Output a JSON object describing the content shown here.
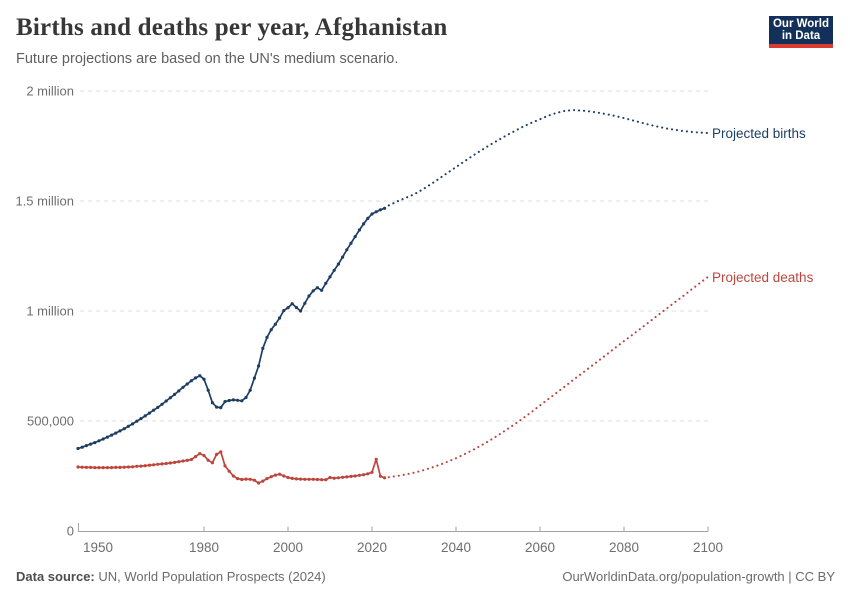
{
  "header": {
    "title": "Births and deaths per year, Afghanistan",
    "subtitle": "Future projections are based on the UN's medium scenario.",
    "logo_line1": "Our World",
    "logo_line2": "in Data",
    "logo_colors": {
      "background": "#12305a",
      "stripe": "#d93d32"
    }
  },
  "chart_data": {
    "type": "line",
    "title": "Births and deaths per year, Afghanistan",
    "x_label": "",
    "y_label": "",
    "x_range": [
      1950,
      2100
    ],
    "y_range": [
      0,
      2000000
    ],
    "grid": true,
    "x_ticks": [
      1950,
      1980,
      2000,
      2020,
      2040,
      2060,
      2080,
      2100
    ],
    "y_ticks": [
      {
        "value": 0,
        "label": "0"
      },
      {
        "value": 500000,
        "label": "500,000"
      },
      {
        "value": 1000000,
        "label": "1 million"
      },
      {
        "value": 1500000,
        "label": "1.5 million"
      },
      {
        "value": 2000000,
        "label": "2 million"
      }
    ],
    "series_labels": {
      "births": {
        "text": "Projected births"
      },
      "deaths": {
        "text": "Projected deaths"
      }
    },
    "series": [
      {
        "id": "births-historical",
        "name": "Births (historical)",
        "color": "#1d3d63",
        "style": "solid",
        "points": [
          [
            1950,
            375000
          ],
          [
            1951,
            381000
          ],
          [
            1952,
            388000
          ],
          [
            1953,
            395000
          ],
          [
            1954,
            402000
          ],
          [
            1955,
            410000
          ],
          [
            1956,
            418000
          ],
          [
            1957,
            427000
          ],
          [
            1958,
            436000
          ],
          [
            1959,
            445000
          ],
          [
            1960,
            455000
          ],
          [
            1961,
            465000
          ],
          [
            1962,
            476000
          ],
          [
            1963,
            487000
          ],
          [
            1964,
            499000
          ],
          [
            1965,
            511000
          ],
          [
            1966,
            523000
          ],
          [
            1967,
            536000
          ],
          [
            1968,
            549000
          ],
          [
            1969,
            562000
          ],
          [
            1970,
            576000
          ],
          [
            1971,
            591000
          ],
          [
            1972,
            606000
          ],
          [
            1973,
            621000
          ],
          [
            1974,
            637000
          ],
          [
            1975,
            653000
          ],
          [
            1976,
            668000
          ],
          [
            1977,
            683000
          ],
          [
            1978,
            696000
          ],
          [
            1979,
            706000
          ],
          [
            1980,
            690000
          ],
          [
            1981,
            640000
          ],
          [
            1982,
            583000
          ],
          [
            1983,
            563000
          ],
          [
            1984,
            561000
          ],
          [
            1985,
            588000
          ],
          [
            1986,
            593000
          ],
          [
            1987,
            596000
          ],
          [
            1988,
            594000
          ],
          [
            1989,
            592000
          ],
          [
            1990,
            607000
          ],
          [
            1991,
            640000
          ],
          [
            1992,
            695000
          ],
          [
            1993,
            750000
          ],
          [
            1994,
            830000
          ],
          [
            1995,
            880000
          ],
          [
            1996,
            915000
          ],
          [
            1997,
            940000
          ],
          [
            1998,
            968000
          ],
          [
            1999,
            1002000
          ],
          [
            2000,
            1015000
          ],
          [
            2001,
            1033000
          ],
          [
            2002,
            1016000
          ],
          [
            2003,
            1000000
          ],
          [
            2004,
            1035000
          ],
          [
            2005,
            1068000
          ],
          [
            2006,
            1092000
          ],
          [
            2007,
            1106000
          ],
          [
            2008,
            1094000
          ],
          [
            2009,
            1126000
          ],
          [
            2010,
            1155000
          ],
          [
            2011,
            1185000
          ],
          [
            2012,
            1213000
          ],
          [
            2013,
            1245000
          ],
          [
            2014,
            1278000
          ],
          [
            2015,
            1308000
          ],
          [
            2016,
            1338000
          ],
          [
            2017,
            1368000
          ],
          [
            2018,
            1396000
          ],
          [
            2019,
            1421000
          ],
          [
            2020,
            1441000
          ],
          [
            2021,
            1451000
          ],
          [
            2022,
            1460000
          ],
          [
            2023,
            1467000
          ]
        ]
      },
      {
        "id": "births-projected",
        "name": "Projected births",
        "color": "#1d3d63",
        "style": "dotted",
        "points": [
          [
            2024,
            1480000
          ],
          [
            2026,
            1498000
          ],
          [
            2028,
            1514000
          ],
          [
            2030,
            1530000
          ],
          [
            2032,
            1552000
          ],
          [
            2034,
            1576000
          ],
          [
            2036,
            1602000
          ],
          [
            2038,
            1628000
          ],
          [
            2040,
            1654000
          ],
          [
            2042,
            1680000
          ],
          [
            2044,
            1706000
          ],
          [
            2046,
            1730000
          ],
          [
            2048,
            1754000
          ],
          [
            2050,
            1776000
          ],
          [
            2052,
            1798000
          ],
          [
            2054,
            1818000
          ],
          [
            2056,
            1838000
          ],
          [
            2058,
            1856000
          ],
          [
            2060,
            1872000
          ],
          [
            2062,
            1888000
          ],
          [
            2064,
            1901000
          ],
          [
            2066,
            1910000
          ],
          [
            2068,
            1913000
          ],
          [
            2070,
            1911000
          ],
          [
            2072,
            1907000
          ],
          [
            2074,
            1901000
          ],
          [
            2076,
            1894000
          ],
          [
            2078,
            1886000
          ],
          [
            2080,
            1877000
          ],
          [
            2082,
            1867000
          ],
          [
            2084,
            1857000
          ],
          [
            2086,
            1847000
          ],
          [
            2088,
            1838000
          ],
          [
            2090,
            1830000
          ],
          [
            2092,
            1824000
          ],
          [
            2094,
            1818000
          ],
          [
            2096,
            1814000
          ],
          [
            2098,
            1811000
          ],
          [
            2100,
            1809000
          ]
        ]
      },
      {
        "id": "deaths-historical",
        "name": "Deaths (historical)",
        "color": "#bc463c",
        "style": "solid",
        "points": [
          [
            1950,
            291000
          ],
          [
            1951,
            290000
          ],
          [
            1952,
            289000
          ],
          [
            1953,
            289000
          ],
          [
            1954,
            288000
          ],
          [
            1955,
            288000
          ],
          [
            1956,
            288000
          ],
          [
            1957,
            288000
          ],
          [
            1958,
            288000
          ],
          [
            1959,
            289000
          ],
          [
            1960,
            289000
          ],
          [
            1961,
            290000
          ],
          [
            1962,
            291000
          ],
          [
            1963,
            292000
          ],
          [
            1964,
            294000
          ],
          [
            1965,
            295000
          ],
          [
            1966,
            297000
          ],
          [
            1967,
            299000
          ],
          [
            1968,
            301000
          ],
          [
            1969,
            303000
          ],
          [
            1970,
            305000
          ],
          [
            1971,
            307000
          ],
          [
            1972,
            309000
          ],
          [
            1973,
            312000
          ],
          [
            1974,
            315000
          ],
          [
            1975,
            318000
          ],
          [
            1976,
            321000
          ],
          [
            1977,
            325000
          ],
          [
            1978,
            338000
          ],
          [
            1979,
            352000
          ],
          [
            1980,
            343000
          ],
          [
            1981,
            322000
          ],
          [
            1982,
            310000
          ],
          [
            1983,
            348000
          ],
          [
            1984,
            360000
          ],
          [
            1985,
            296000
          ],
          [
            1986,
            272000
          ],
          [
            1987,
            250000
          ],
          [
            1988,
            238000
          ],
          [
            1989,
            234000
          ],
          [
            1990,
            236000
          ],
          [
            1991,
            235000
          ],
          [
            1992,
            231000
          ],
          [
            1993,
            218000
          ],
          [
            1994,
            227000
          ],
          [
            1995,
            238000
          ],
          [
            1996,
            247000
          ],
          [
            1997,
            254000
          ],
          [
            1998,
            258000
          ],
          [
            1999,
            250000
          ],
          [
            2000,
            243000
          ],
          [
            2001,
            239000
          ],
          [
            2002,
            237000
          ],
          [
            2003,
            236000
          ],
          [
            2004,
            235000
          ],
          [
            2005,
            235000
          ],
          [
            2006,
            235000
          ],
          [
            2007,
            234000
          ],
          [
            2008,
            233000
          ],
          [
            2009,
            233000
          ],
          [
            2010,
            243000
          ],
          [
            2011,
            240000
          ],
          [
            2012,
            242000
          ],
          [
            2013,
            244000
          ],
          [
            2014,
            246000
          ],
          [
            2015,
            248000
          ],
          [
            2016,
            250000
          ],
          [
            2017,
            253000
          ],
          [
            2018,
            256000
          ],
          [
            2019,
            260000
          ],
          [
            2020,
            267000
          ],
          [
            2021,
            326000
          ],
          [
            2022,
            249000
          ],
          [
            2023,
            242000
          ]
        ]
      },
      {
        "id": "deaths-projected",
        "name": "Projected deaths",
        "color": "#bc463c",
        "style": "dotted",
        "points": [
          [
            2024,
            245000
          ],
          [
            2026,
            250000
          ],
          [
            2028,
            257000
          ],
          [
            2030,
            265000
          ],
          [
            2032,
            275000
          ],
          [
            2034,
            287000
          ],
          [
            2036,
            300000
          ],
          [
            2038,
            315000
          ],
          [
            2040,
            331000
          ],
          [
            2042,
            349000
          ],
          [
            2044,
            368000
          ],
          [
            2046,
            389000
          ],
          [
            2048,
            411000
          ],
          [
            2050,
            435000
          ],
          [
            2052,
            460000
          ],
          [
            2054,
            486000
          ],
          [
            2056,
            513000
          ],
          [
            2058,
            541000
          ],
          [
            2060,
            571000
          ],
          [
            2062,
            600000
          ],
          [
            2064,
            629000
          ],
          [
            2066,
            658000
          ],
          [
            2068,
            688000
          ],
          [
            2070,
            717000
          ],
          [
            2072,
            746000
          ],
          [
            2074,
            775000
          ],
          [
            2076,
            804000
          ],
          [
            2078,
            834000
          ],
          [
            2080,
            863000
          ],
          [
            2082,
            892000
          ],
          [
            2084,
            921000
          ],
          [
            2086,
            950000
          ],
          [
            2088,
            980000
          ],
          [
            2090,
            1009000
          ],
          [
            2092,
            1038000
          ],
          [
            2094,
            1067000
          ],
          [
            2096,
            1097000
          ],
          [
            2098,
            1126000
          ],
          [
            2100,
            1155000
          ]
        ]
      }
    ]
  },
  "footer": {
    "source_label": "Data source:",
    "source_text": "UN, World Population Prospects (2024)",
    "credit": "OurWorldinData.org/population-growth | CC BY"
  }
}
